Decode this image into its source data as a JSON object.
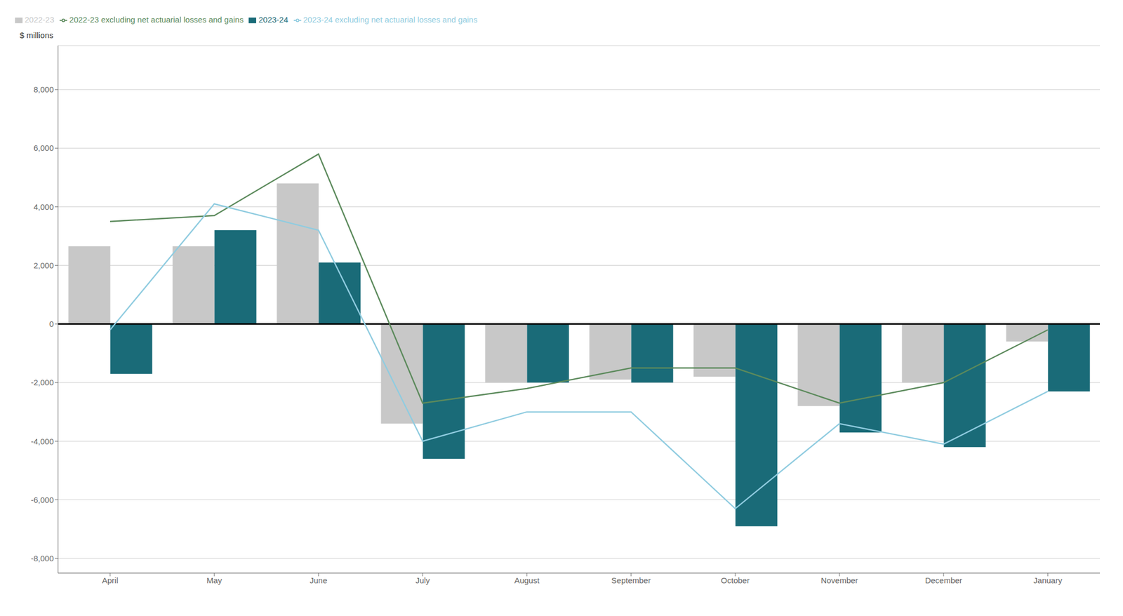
{
  "chart_data": {
    "type": "bar",
    "categories": [
      "April",
      "May",
      "June",
      "July",
      "August",
      "September",
      "October",
      "November",
      "December",
      "January"
    ],
    "series": [
      {
        "name": "2022-23",
        "type": "bar",
        "color": "#c8c8c8",
        "values": [
          2650,
          2650,
          4800,
          -3400,
          -2000,
          -1900,
          -1800,
          -2800,
          -2000,
          -600
        ]
      },
      {
        "name": "2023-24",
        "type": "bar",
        "color": "#1a6b78",
        "values": [
          -1700,
          3200,
          2100,
          -4600,
          -2000,
          -2000,
          -6900,
          -3700,
          -4200,
          -2300
        ]
      },
      {
        "name": "2022-23 excluding net actuarial losses and gains",
        "type": "line",
        "color": "#5c8a5c",
        "values": [
          3500,
          3700,
          5800,
          -2700,
          -2200,
          -1500,
          -1500,
          -2700,
          -2000,
          -200
        ]
      },
      {
        "name": "2023-24 excluding net actuarial losses and gains",
        "type": "line",
        "color": "#90cce0",
        "values": [
          -200,
          4100,
          3200,
          -4000,
          -3000,
          -3000,
          -6300,
          -3400,
          -4100,
          -2300
        ]
      }
    ],
    "ylabel": "$ millions",
    "ylim": [
      -8500,
      9500
    ],
    "yticks": [
      {
        "value": -8000,
        "label": "-8,000"
      },
      {
        "value": -6000,
        "label": "-6,000"
      },
      {
        "value": -4000,
        "label": "-4,000"
      },
      {
        "value": -2000,
        "label": "-2,000"
      },
      0,
      {
        "value": 2000,
        "label": "2,000"
      },
      {
        "value": 4000,
        "label": "4,000"
      },
      {
        "value": 6000,
        "label": "6,000"
      },
      {
        "value": 8000,
        "label": "8,000"
      }
    ],
    "grid": true,
    "legend": "top"
  }
}
